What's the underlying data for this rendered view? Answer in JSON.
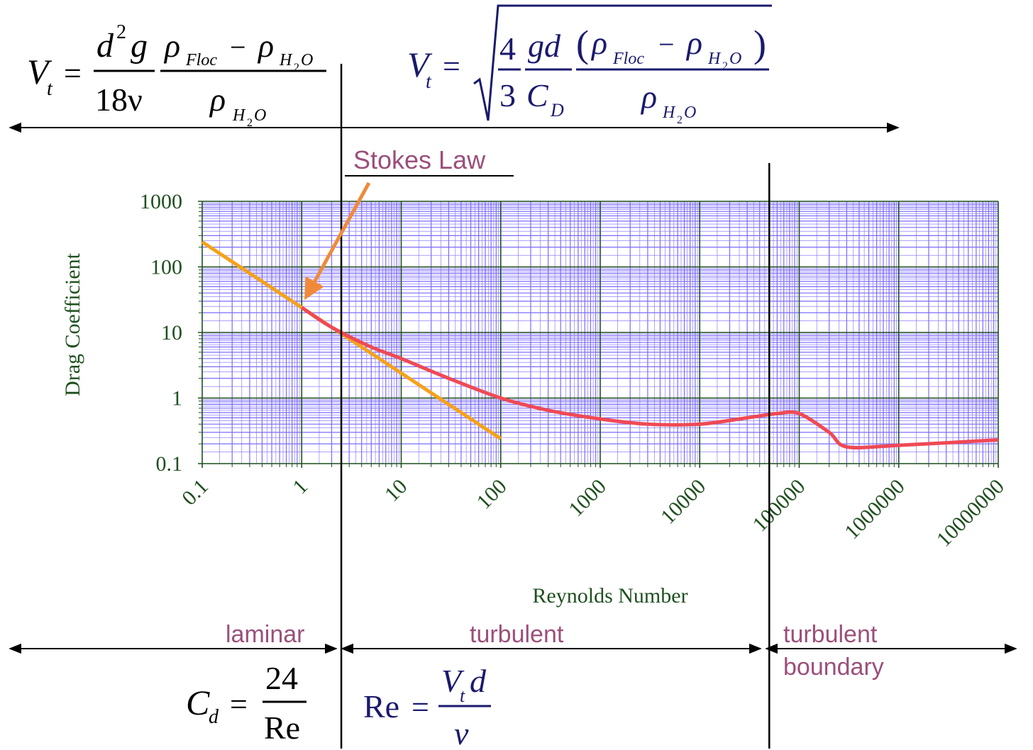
{
  "formulas": {
    "stokes_velocity": {
      "lhs": "V",
      "lhs_sub": "t",
      "eq": "=",
      "num1": "d",
      "num1_sup": "2",
      "num1_b": "g",
      "den1": "18ν",
      "num2_a": "ρ",
      "num2_a_sub": "Floc",
      "minus": "−",
      "num2_b": "ρ",
      "num2_b_sub_main": "H",
      "num2_b_sub_2": "2",
      "num2_b_sub_end": "O",
      "den2": "ρ",
      "den2_sub_main": "H",
      "den2_sub_2": "2",
      "den2_sub_end": "O"
    },
    "general_velocity": {
      "lhs": "V",
      "lhs_sub": "t",
      "eq": "=",
      "frac1_num": "4",
      "frac1_den": "3",
      "frac2_num": "gd",
      "frac2_den": "C",
      "frac2_den_sub": "D",
      "frac3_num_a": "ρ",
      "frac3_num_a_sub": "Floc",
      "minus": "−",
      "frac3_num_b": "ρ",
      "frac3_num_b_sub_main": "H",
      "frac3_num_b_sub_2": "2",
      "frac3_num_b_sub_end": "O",
      "frac3_open": "(",
      "frac3_close": ")",
      "frac3_den": "ρ",
      "frac3_den_sub_main": "H",
      "frac3_den_sub_2": "2",
      "frac3_den_sub_end": "O"
    },
    "drag_laminar": {
      "lhs": "C",
      "lhs_sub": "d",
      "eq": "=",
      "num": "24",
      "den": "Re"
    },
    "reynolds": {
      "lhs": "Re",
      "eq": "=",
      "num": "V",
      "num_sub": "t",
      "num_b": "d",
      "den": "ν"
    }
  },
  "annotations": {
    "stokes_law": "Stokes Law",
    "laminar": "laminar",
    "turbulent": "turbulent",
    "turbulent_boundary_1": "turbulent",
    "turbulent_boundary_2": "boundary"
  },
  "colors": {
    "grid_major": "#1f4f1f",
    "grid_minor": "#7b6bff",
    "axis_text": "#1f4f1f",
    "drag_curve": "#ef4a55",
    "stokes_line": "#f5a21a",
    "arrow": "#f08a3a",
    "region_label": "#9b4f7a",
    "formula_blue": "#1a1a6e",
    "formula_black": "#000000"
  },
  "chart_data": {
    "type": "line",
    "xlabel": "Reynolds Number",
    "ylabel": "Drag Coefficient",
    "xscale": "log",
    "yscale": "log",
    "xlim": [
      0.1,
      10000000
    ],
    "ylim": [
      0.1,
      1000
    ],
    "x_ticks": [
      "0.1",
      "1",
      "10",
      "100",
      "1000",
      "10000",
      "100000",
      "1000000",
      "10000000"
    ],
    "y_ticks": [
      "1000",
      "100",
      "10",
      "1",
      "0.1"
    ],
    "grid": true,
    "series": [
      {
        "role": "drag coefficient curve",
        "x": [
          1,
          2,
          5,
          10,
          30,
          100,
          300,
          1000,
          3000,
          10000,
          30000,
          60000,
          100000,
          200000,
          300000,
          1000000,
          10000000
        ],
        "y": [
          24,
          12,
          6,
          4,
          2,
          1,
          0.65,
          0.48,
          0.4,
          0.4,
          0.5,
          0.58,
          0.58,
          0.3,
          0.18,
          0.19,
          0.23
        ]
      },
      {
        "role": "Stokes law line",
        "x": [
          0.1,
          100
        ],
        "y": [
          240,
          0.24
        ]
      }
    ],
    "regime_boundaries_re": [
      2.5,
      50000
    ]
  }
}
